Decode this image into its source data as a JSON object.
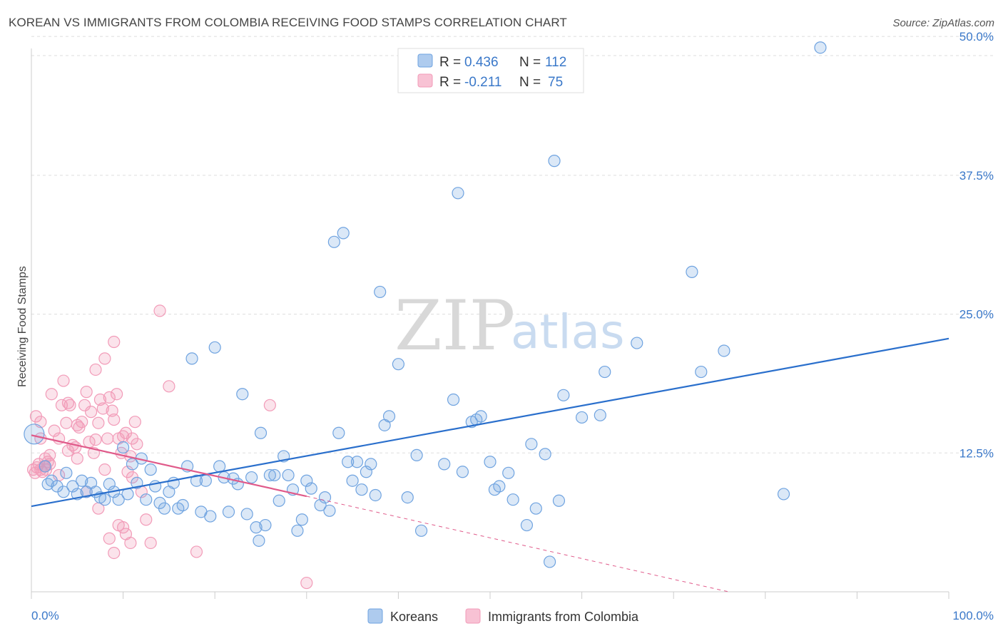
{
  "title": "KOREAN VS IMMIGRANTS FROM COLOMBIA RECEIVING FOOD STAMPS CORRELATION CHART",
  "source": "Source: ZipAtlas.com",
  "watermark": {
    "zip": "ZIP",
    "atlas": "atlas"
  },
  "legend_box": {
    "rows": [
      {
        "r_label": "R = ",
        "r_value": "0.436",
        "n_label": "N = ",
        "n_value": "112"
      },
      {
        "r_label": "R = ",
        "r_value": "-0.211",
        "n_label": "N = ",
        "n_value": "75"
      }
    ]
  },
  "chart_data": {
    "type": "scatter",
    "title": "KOREAN VS IMMIGRANTS FROM COLOMBIA RECEIVING FOOD STAMPS CORRELATION CHART",
    "xlabel": "",
    "ylabel": "Receiving Food Stamps",
    "xlim": [
      0,
      100
    ],
    "ylim": [
      0,
      52
    ],
    "x_tick_labels": [
      "0.0%",
      "100.0%"
    ],
    "y_ticks": [
      12.5,
      25.0,
      37.5,
      50.0
    ],
    "y_tick_labels": [
      "12.5%",
      "25.0%",
      "37.5%",
      "50.0%"
    ],
    "grid": true,
    "legend_placement": "bottom-center",
    "colors": {
      "koreans": "#6fa3e0",
      "colombia": "#f29bb8",
      "koreans_line": "#2a6fcc",
      "colombia_line": "#e05a8a"
    },
    "series": [
      {
        "name": "Koreans",
        "r": 0.436,
        "n": 112,
        "trend": {
          "x": [
            0,
            100
          ],
          "y": [
            7.7,
            22.8
          ]
        },
        "points": [
          [
            0.3,
            14.2
          ],
          [
            1.5,
            11.3
          ],
          [
            1.8,
            9.7
          ],
          [
            2.2,
            10.0
          ],
          [
            2.8,
            9.5
          ],
          [
            3.5,
            9.0
          ],
          [
            3.8,
            10.7
          ],
          [
            4.5,
            9.5
          ],
          [
            5.0,
            8.8
          ],
          [
            5.5,
            10.0
          ],
          [
            6.0,
            9.0
          ],
          [
            6.5,
            9.8
          ],
          [
            7.0,
            9.0
          ],
          [
            7.5,
            8.5
          ],
          [
            8.0,
            8.3
          ],
          [
            8.5,
            9.7
          ],
          [
            9.0,
            9.0
          ],
          [
            9.5,
            8.3
          ],
          [
            10.0,
            13.0
          ],
          [
            10.5,
            8.8
          ],
          [
            11.0,
            11.5
          ],
          [
            11.5,
            9.8
          ],
          [
            12.0,
            12.0
          ],
          [
            12.5,
            8.3
          ],
          [
            13.0,
            11.0
          ],
          [
            13.5,
            9.5
          ],
          [
            14.0,
            8.0
          ],
          [
            14.5,
            7.5
          ],
          [
            15.0,
            9.0
          ],
          [
            15.5,
            9.8
          ],
          [
            16.0,
            7.5
          ],
          [
            16.5,
            7.8
          ],
          [
            17.0,
            11.3
          ],
          [
            17.5,
            21.0
          ],
          [
            18.0,
            10.0
          ],
          [
            18.5,
            7.2
          ],
          [
            19.0,
            10.0
          ],
          [
            19.5,
            6.8
          ],
          [
            20.0,
            22.0
          ],
          [
            20.5,
            11.3
          ],
          [
            21.0,
            10.3
          ],
          [
            21.5,
            7.2
          ],
          [
            22.0,
            10.2
          ],
          [
            22.5,
            9.7
          ],
          [
            23.0,
            17.8
          ],
          [
            23.5,
            7.0
          ],
          [
            24.0,
            10.3
          ],
          [
            24.5,
            5.8
          ],
          [
            24.8,
            4.6
          ],
          [
            25.0,
            14.3
          ],
          [
            25.5,
            6.0
          ],
          [
            26.0,
            10.5
          ],
          [
            26.5,
            10.5
          ],
          [
            27.0,
            8.2
          ],
          [
            27.5,
            12.2
          ],
          [
            28.0,
            10.5
          ],
          [
            28.5,
            9.2
          ],
          [
            29.0,
            5.5
          ],
          [
            29.5,
            6.5
          ],
          [
            30.0,
            10.0
          ],
          [
            30.5,
            9.3
          ],
          [
            31.5,
            7.8
          ],
          [
            32.0,
            8.5
          ],
          [
            32.5,
            7.3
          ],
          [
            33.0,
            31.5
          ],
          [
            33.5,
            14.3
          ],
          [
            34.0,
            32.3
          ],
          [
            34.5,
            11.7
          ],
          [
            35.0,
            10.0
          ],
          [
            35.5,
            11.7
          ],
          [
            36.0,
            9.2
          ],
          [
            36.5,
            10.8
          ],
          [
            37.0,
            11.5
          ],
          [
            37.5,
            8.7
          ],
          [
            38.0,
            27.0
          ],
          [
            38.5,
            15.0
          ],
          [
            39.0,
            15.8
          ],
          [
            40.0,
            20.5
          ],
          [
            41.0,
            8.5
          ],
          [
            42.0,
            12.3
          ],
          [
            42.5,
            5.5
          ],
          [
            45.0,
            11.5
          ],
          [
            46.0,
            17.3
          ],
          [
            46.5,
            35.9
          ],
          [
            47.0,
            10.8
          ],
          [
            48.0,
            15.3
          ],
          [
            48.5,
            15.5
          ],
          [
            49.0,
            15.8
          ],
          [
            50.0,
            11.7
          ],
          [
            50.5,
            9.2
          ],
          [
            51.0,
            9.5
          ],
          [
            52.0,
            10.7
          ],
          [
            52.5,
            8.3
          ],
          [
            54.0,
            6.0
          ],
          [
            54.5,
            13.3
          ],
          [
            55.0,
            7.5
          ],
          [
            56.0,
            12.4
          ],
          [
            56.5,
            2.7
          ],
          [
            57.0,
            38.8
          ],
          [
            57.5,
            8.2
          ],
          [
            58.0,
            17.7
          ],
          [
            60.0,
            15.7
          ],
          [
            62.0,
            15.9
          ],
          [
            62.5,
            19.8
          ],
          [
            66.0,
            22.4
          ],
          [
            72.0,
            28.8
          ],
          [
            73.0,
            19.8
          ],
          [
            75.5,
            21.7
          ],
          [
            82.0,
            8.8
          ],
          [
            86.0,
            49.0
          ]
        ]
      },
      {
        "name": "Immigrants from Colombia",
        "r": -0.211,
        "n": 75,
        "trend": {
          "x": [
            0,
            30
          ],
          "y": [
            14.1,
            8.6
          ]
        },
        "trend_dashed": {
          "x": [
            30,
            76
          ],
          "y": [
            8.6,
            0
          ]
        },
        "points": [
          [
            0.2,
            11.0
          ],
          [
            0.4,
            10.7
          ],
          [
            0.6,
            11.2
          ],
          [
            0.8,
            11.5
          ],
          [
            1.0,
            11.0
          ],
          [
            1.2,
            10.8
          ],
          [
            1.4,
            11.3
          ],
          [
            1.6,
            11.0
          ],
          [
            1.8,
            11.7
          ],
          [
            2.0,
            11.5
          ],
          [
            0.5,
            15.8
          ],
          [
            1.0,
            13.8
          ],
          [
            1.5,
            12.0
          ],
          [
            2.2,
            17.8
          ],
          [
            2.5,
            14.5
          ],
          [
            3.0,
            13.8
          ],
          [
            3.3,
            16.8
          ],
          [
            3.5,
            19.0
          ],
          [
            3.8,
            15.2
          ],
          [
            4.0,
            17.0
          ],
          [
            4.2,
            16.8
          ],
          [
            4.5,
            13.2
          ],
          [
            4.8,
            13.0
          ],
          [
            5.0,
            15.0
          ],
          [
            5.2,
            14.8
          ],
          [
            5.5,
            15.3
          ],
          [
            5.8,
            16.8
          ],
          [
            6.0,
            18.0
          ],
          [
            6.3,
            13.5
          ],
          [
            6.5,
            16.2
          ],
          [
            6.8,
            12.5
          ],
          [
            7.0,
            13.7
          ],
          [
            7.3,
            15.2
          ],
          [
            7.5,
            17.3
          ],
          [
            7.8,
            16.5
          ],
          [
            8.0,
            21.0
          ],
          [
            8.3,
            13.8
          ],
          [
            8.5,
            17.5
          ],
          [
            8.8,
            16.3
          ],
          [
            9.0,
            15.5
          ],
          [
            9.3,
            17.8
          ],
          [
            9.5,
            13.8
          ],
          [
            9.8,
            12.5
          ],
          [
            10.0,
            14.0
          ],
          [
            10.3,
            14.3
          ],
          [
            10.5,
            10.8
          ],
          [
            10.8,
            12.2
          ],
          [
            11.0,
            13.8
          ],
          [
            11.3,
            15.3
          ],
          [
            11.5,
            13.3
          ],
          [
            7.0,
            20.0
          ],
          [
            7.3,
            7.5
          ],
          [
            8.0,
            11.0
          ],
          [
            8.5,
            4.8
          ],
          [
            9.0,
            3.5
          ],
          [
            9.5,
            6.0
          ],
          [
            10.0,
            5.8
          ],
          [
            10.3,
            5.2
          ],
          [
            10.8,
            4.4
          ],
          [
            12.5,
            6.5
          ],
          [
            13.0,
            4.4
          ],
          [
            14.0,
            25.3
          ],
          [
            15.0,
            18.5
          ],
          [
            18.0,
            3.6
          ],
          [
            26.0,
            16.8
          ],
          [
            4.0,
            12.7
          ],
          [
            3.0,
            10.5
          ],
          [
            2.0,
            12.3
          ],
          [
            6.0,
            9.0
          ],
          [
            11.0,
            10.3
          ],
          [
            12.0,
            9.0
          ],
          [
            1.0,
            15.3
          ],
          [
            5.0,
            12.0
          ],
          [
            9.0,
            22.5
          ],
          [
            30.0,
            0.8
          ]
        ]
      }
    ]
  },
  "bottom_legend": {
    "items": [
      {
        "label": "Koreans"
      },
      {
        "label": "Immigrants from Colombia"
      }
    ]
  }
}
